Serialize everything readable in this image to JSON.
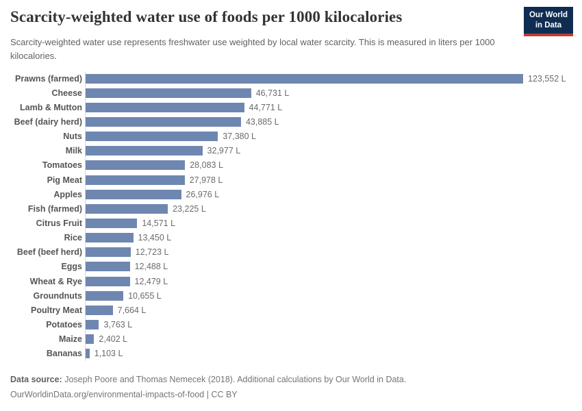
{
  "header": {
    "title": "Scarcity-weighted water use of foods per 1000 kilocalories",
    "subtitle": "Scarcity-weighted water use represents freshwater use weighted by local water scarcity. This is measured in liters per 1000 kilocalories.",
    "logo": {
      "line1": "Our World",
      "line2": "in Data",
      "bg_color": "#0f2d52",
      "accent_color": "#c23a32"
    }
  },
  "chart_data": {
    "type": "bar",
    "orientation": "horizontal",
    "title": "Scarcity-weighted water use of foods per 1000 kilocalories",
    "xlabel": "",
    "ylabel": "",
    "unit": "liters per 1000 kilocalories",
    "xlim": [
      0,
      123552
    ],
    "grid": false,
    "legend": "none",
    "bar_color": "#6e87b0",
    "categories": [
      "Prawns (farmed)",
      "Cheese",
      "Lamb & Mutton",
      "Beef (dairy herd)",
      "Nuts",
      "Milk",
      "Tomatoes",
      "Pig Meat",
      "Apples",
      "Fish (farmed)",
      "Citrus Fruit",
      "Rice",
      "Beef (beef herd)",
      "Eggs",
      "Wheat & Rye",
      "Groundnuts",
      "Poultry Meat",
      "Potatoes",
      "Maize",
      "Bananas"
    ],
    "values": [
      123552,
      46731,
      44771,
      43885,
      37380,
      32977,
      28083,
      27978,
      26976,
      23225,
      14571,
      13450,
      12723,
      12488,
      12479,
      10655,
      7664,
      3763,
      2402,
      1103
    ],
    "value_labels": [
      "123,552 L",
      "46,731 L",
      "44,771 L",
      "43,885 L",
      "37,380 L",
      "32,977 L",
      "28,083 L",
      "27,978 L",
      "26,976 L",
      "23,225 L",
      "14,571 L",
      "13,450 L",
      "12,723 L",
      "12,488 L",
      "12,479 L",
      "10,655 L",
      "7,664 L",
      "3,763 L",
      "2,402 L",
      "1,103 L"
    ]
  },
  "footer": {
    "source_label": "Data source:",
    "source_text": " Joseph Poore and Thomas Nemecek (2018). Additional calculations by Our World in Data.",
    "link_line": "OurWorldinData.org/environmental-impacts-of-food | CC BY"
  }
}
